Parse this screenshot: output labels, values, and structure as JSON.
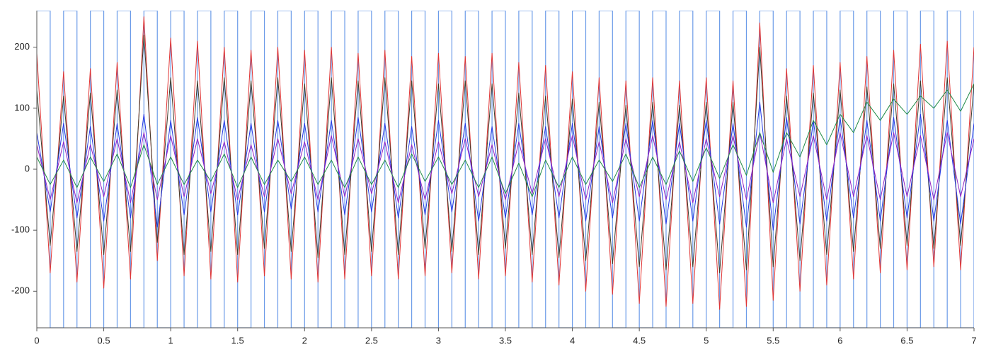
{
  "chart_data": {
    "type": "line",
    "x": [
      0,
      0.1,
      0.2,
      0.3,
      0.4,
      0.5,
      0.6,
      0.7,
      0.8,
      0.9,
      1,
      1.1,
      1.2,
      1.3,
      1.4,
      1.5,
      1.6,
      1.7,
      1.8,
      1.9,
      2,
      2.1,
      2.2,
      2.3,
      2.4,
      2.5,
      2.6,
      2.7,
      2.8,
      2.9,
      3,
      3.1,
      3.2,
      3.3,
      3.4,
      3.5,
      3.6,
      3.7,
      3.8,
      3.9,
      4,
      4.1,
      4.2,
      4.3,
      4.4,
      4.5,
      4.6,
      4.7,
      4.8,
      4.9,
      5,
      5.1,
      5.2,
      5.3,
      5.4,
      5.5,
      5.6,
      5.7,
      5.8,
      5.9,
      6,
      6.1,
      6.2,
      6.3,
      6.4,
      6.5,
      6.6,
      6.7,
      6.8,
      6.9,
      7
    ],
    "xlim": [
      0,
      7
    ],
    "xticks": [
      0,
      0.5,
      1,
      1.5,
      2,
      2.5,
      3,
      3.5,
      4,
      4.5,
      5,
      5.5,
      6,
      6.5,
      7
    ],
    "ylim": [
      -260,
      260
    ],
    "yticks": [
      -200,
      -100,
      0,
      100,
      200
    ],
    "series": [
      {
        "color": "#6b9be8",
        "step": true,
        "values": [
          260,
          -260,
          260,
          -260,
          260,
          -260,
          260,
          -260,
          260,
          -260,
          260,
          -260,
          260,
          -260,
          260,
          -260,
          260,
          -260,
          260,
          -260,
          260,
          -260,
          260,
          -260,
          260,
          -260,
          260,
          -260,
          260,
          -260,
          260,
          -260,
          260,
          -260,
          260,
          -260,
          260,
          -260,
          260,
          -260,
          260,
          -260,
          260,
          -260,
          260,
          -260,
          260,
          -260,
          260,
          -260,
          260,
          -260,
          260,
          -260,
          260,
          -260,
          260,
          -260,
          260,
          -260,
          260,
          -260,
          260,
          -260,
          260,
          -260,
          260,
          -260,
          260,
          -260,
          260
        ]
      },
      {
        "color": "#e03535",
        "values": [
          190,
          -170,
          160,
          -185,
          165,
          -195,
          175,
          -180,
          250,
          -150,
          215,
          -175,
          210,
          -180,
          200,
          -185,
          195,
          -175,
          200,
          -180,
          195,
          -185,
          200,
          -180,
          190,
          -175,
          195,
          -180,
          185,
          -175,
          190,
          -170,
          185,
          -180,
          190,
          -175,
          175,
          -185,
          170,
          -190,
          160,
          -200,
          150,
          -205,
          145,
          -220,
          150,
          -225,
          145,
          -220,
          150,
          -230,
          145,
          -225,
          240,
          -215,
          165,
          -200,
          170,
          -190,
          175,
          -180,
          185,
          -170,
          195,
          -165,
          205,
          -160,
          210,
          -165,
          200
        ]
      },
      {
        "color": "#3d3d2c",
        "values": [
          130,
          -125,
          120,
          -135,
          125,
          -140,
          130,
          -135,
          220,
          -120,
          150,
          -140,
          145,
          -135,
          150,
          -140,
          145,
          -130,
          150,
          -135,
          140,
          -145,
          150,
          -140,
          145,
          -135,
          150,
          -140,
          145,
          -130,
          140,
          -135,
          145,
          -140,
          140,
          -130,
          125,
          -140,
          120,
          -145,
          115,
          -150,
          110,
          -155,
          105,
          -160,
          110,
          -165,
          105,
          -160,
          110,
          -170,
          110,
          -165,
          200,
          -160,
          120,
          -150,
          125,
          -140,
          130,
          -135,
          135,
          -130,
          140,
          -125,
          145,
          -130,
          150,
          -125,
          140
        ]
      },
      {
        "color": "#2438e6",
        "values": [
          60,
          -70,
          75,
          -80,
          70,
          -85,
          75,
          -80,
          90,
          -95,
          80,
          -75,
          85,
          -70,
          80,
          -75,
          75,
          -70,
          80,
          -65,
          75,
          -70,
          80,
          -75,
          85,
          -70,
          75,
          -80,
          70,
          -75,
          80,
          -70,
          75,
          -85,
          70,
          -80,
          75,
          -75,
          70,
          -80,
          75,
          -85,
          70,
          -80,
          75,
          -85,
          80,
          -90,
          75,
          -85,
          80,
          -90,
          75,
          -95,
          110,
          -100,
          85,
          -90,
          80,
          -85,
          85,
          -80,
          80,
          -85,
          85,
          -80,
          90,
          -85,
          80,
          -90,
          75
        ]
      },
      {
        "color": "#9222c4",
        "values": [
          40,
          -50,
          45,
          -55,
          40,
          -45,
          50,
          -55,
          60,
          -50,
          55,
          -45,
          50,
          -40,
          45,
          -50,
          40,
          -45,
          50,
          -40,
          45,
          -50,
          55,
          -45,
          50,
          -40,
          45,
          -55,
          40,
          -50,
          45,
          -40,
          50,
          -45,
          40,
          -50,
          45,
          -40,
          50,
          -45,
          55,
          -50,
          45,
          -55,
          50,
          -45,
          55,
          -50,
          45,
          -55,
          50,
          -45,
          55,
          -50,
          60,
          -55,
          50,
          -45,
          55,
          -50,
          60,
          -45,
          55,
          -50,
          60,
          -45,
          55,
          -50,
          60,
          -45,
          50
        ]
      },
      {
        "color": "#1f8a46",
        "values": [
          20,
          -25,
          15,
          -30,
          20,
          -20,
          25,
          -30,
          40,
          -25,
          20,
          -25,
          15,
          -20,
          25,
          -30,
          20,
          -25,
          15,
          -20,
          20,
          -25,
          15,
          -30,
          20,
          -25,
          15,
          -30,
          25,
          -20,
          20,
          -25,
          15,
          -30,
          20,
          -40,
          10,
          -45,
          15,
          -30,
          20,
          -25,
          15,
          -20,
          25,
          -30,
          20,
          -25,
          30,
          -20,
          35,
          -15,
          40,
          -10,
          60,
          -5,
          60,
          20,
          80,
          40,
          90,
          60,
          110,
          80,
          115,
          90,
          120,
          100,
          130,
          95,
          140
        ]
      }
    ]
  }
}
